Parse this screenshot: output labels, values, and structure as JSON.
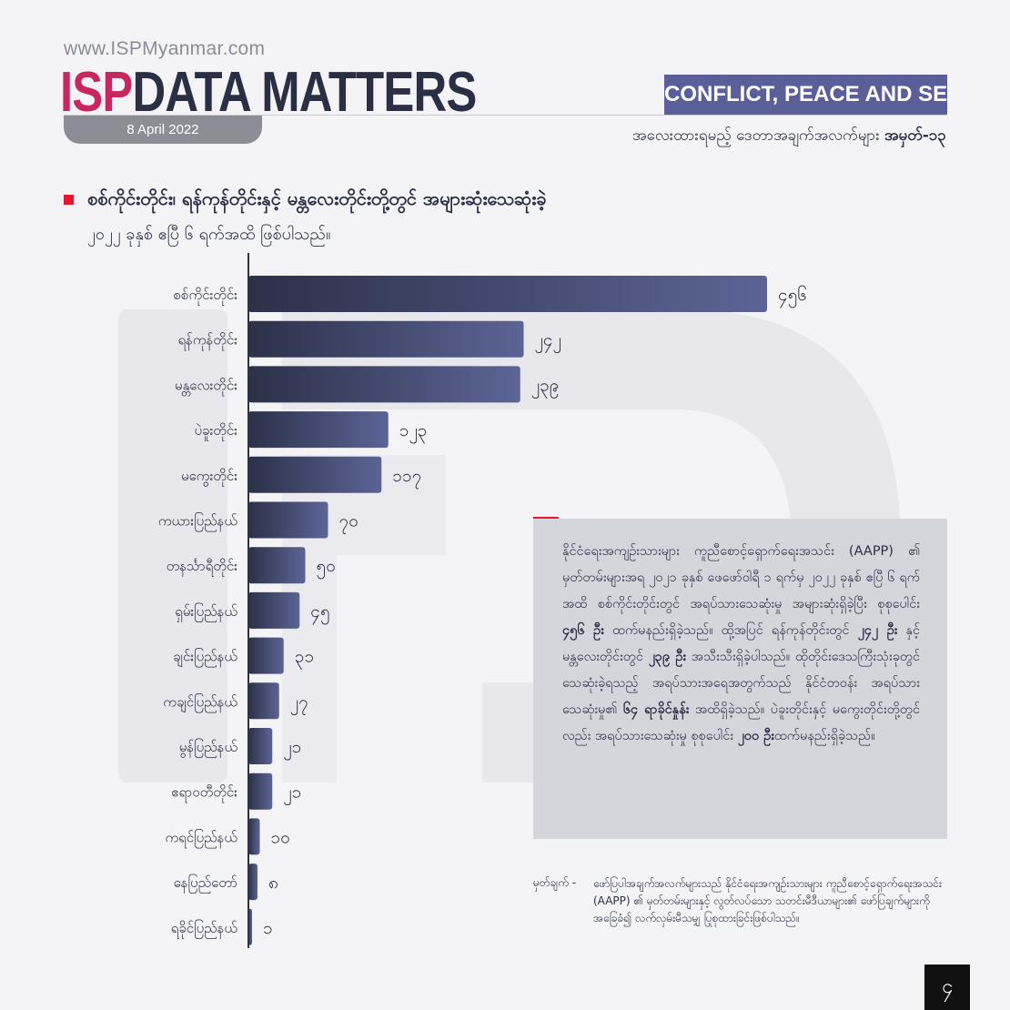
{
  "header": {
    "site_url": "www.ISPMyanmar.com",
    "brand_isp": "ISP",
    "brand_rest": "DATA MATTERS",
    "date": "8 April 2022",
    "category": "CONFLICT, PEACE AND SECURITY",
    "series_label": "အလေးထားရမည့် ဒေတာအချက်အလက်များ",
    "series_number": "အမှတ်-၁၃"
  },
  "colors": {
    "accent_red": "#e0192f",
    "brand_pink": "#c8265e",
    "navy": "#2b2f45",
    "tag_purple": "#5b5f99",
    "bar_dark": "#2c3148",
    "bar_light": "#5c6496"
  },
  "chart_data": {
    "type": "bar",
    "orientation": "horizontal",
    "title": "စစ်ကိုင်းတိုင်း၊ ရန်ကုန်တိုင်းနှင့် မန္တလေးတိုင်းတို့တွင် အများဆုံးသေဆုံးခဲ့",
    "subtitle": "၂၀၂၂ ခုနှစ် ဧပြီ ၆ ရက်အထိ ဖြစ်ပါသည်။",
    "xlabel": "",
    "ylabel": "",
    "categories": [
      "စစ်ကိုင်းတိုင်း",
      "ရန်ကုန်တိုင်း",
      "မန္တလေးတိုင်း",
      "ပဲခူးတိုင်း",
      "မကွေးတိုင်း",
      "ကယားပြည်နယ်",
      "တနင်္သာရီတိုင်း",
      "ရှမ်းပြည်နယ်",
      "ချင်းပြည်နယ်",
      "ကချင်ပြည်နယ်",
      "မွန်ပြည်နယ်",
      "ဧရာဝတီတိုင်း",
      "ကရင်ပြည်နယ်",
      "နေပြည်တော်",
      "ရခိုင်ပြည်နယ်"
    ],
    "values": [
      456,
      242,
      239,
      123,
      117,
      70,
      50,
      45,
      31,
      27,
      21,
      21,
      10,
      8,
      1
    ],
    "value_labels": [
      "၄၅၆",
      "၂၄၂",
      "၂၃၉",
      "၁၂၃",
      "၁၁၇",
      "၇၀",
      "၅၀",
      "၄၅",
      "၃၁",
      "၂၇",
      "၂၁",
      "၂၁",
      "၁၀",
      "၈",
      "၁"
    ],
    "grid": false,
    "legend": "none"
  },
  "note": {
    "p1": "နိုင်ငံရေးအကျဉ်းသားများ ကူညီစောင့်ရှောက်ရေးအသင်း (AAPP) ၏ မှတ်တမ်းများအရ ၂၀၂၁ ခုနှစ် ဖေဖော်ဝါရီ ၁ ရက်မှ ၂၀၂၂ ခုနှစ် ဧပြီ ၆ ရက်အထိ စစ်ကိုင်းတိုင်းတွင် အရပ်သားသေဆုံးမှု အများဆုံးရှိခဲ့ပြီး စုစုပေါင်း",
    "b1": "၄၅၆ ဦး",
    "p2": "ထက်မနည်းရှိခဲ့သည်။ ထို့အပြင် ရန်ကုန်တိုင်းတွင်",
    "b2": "၂၄၂ ဦး",
    "p3": "နှင့် မန္တလေးတိုင်းတွင်",
    "b3": "၂၃၉ ဦး",
    "p4": "အသီးသီးရှိခဲ့ပါသည်။ ထိုတိုင်းဒေသကြီးသုံးခုတွင် သေဆုံးခဲ့ရသည့် အရပ်သားအရေအတွက်သည် နိုင်ငံတဝန်း အရပ်သားသေဆုံးမှု၏",
    "b4": "၆၄ ရာခိုင်နှုန်း",
    "p5": "အထိရှိခဲ့သည်။ ပဲခူးတိုင်းနှင့် မကွေးတိုင်းတို့တွင်လည်း အရပ်သားသေဆုံးမှု စုစုပေါင်း",
    "b5": "၂၀၀ ဦး",
    "p6": "ထက်မနည်းရှိခဲ့သည်။"
  },
  "source": {
    "label": "မှတ်ချက် -",
    "text": "ဖော်ပြပါအချက်အလက်များသည် နိုင်ငံရေးအကျဉ်းသားများ ကူညီစောင့်ရှောက်ရေးအသင်း (AAPP) ၏ မှတ်တမ်းများနှင့် လွတ်လပ်သော သတင်းမီဒီယာများ၏ ဖော်ပြချက်များကို အခြေခံ၍ လက်လှမ်းမီသမျှ ပြုစုထားခြင်းဖြစ်ပါသည်။"
  },
  "page_number": "၄"
}
